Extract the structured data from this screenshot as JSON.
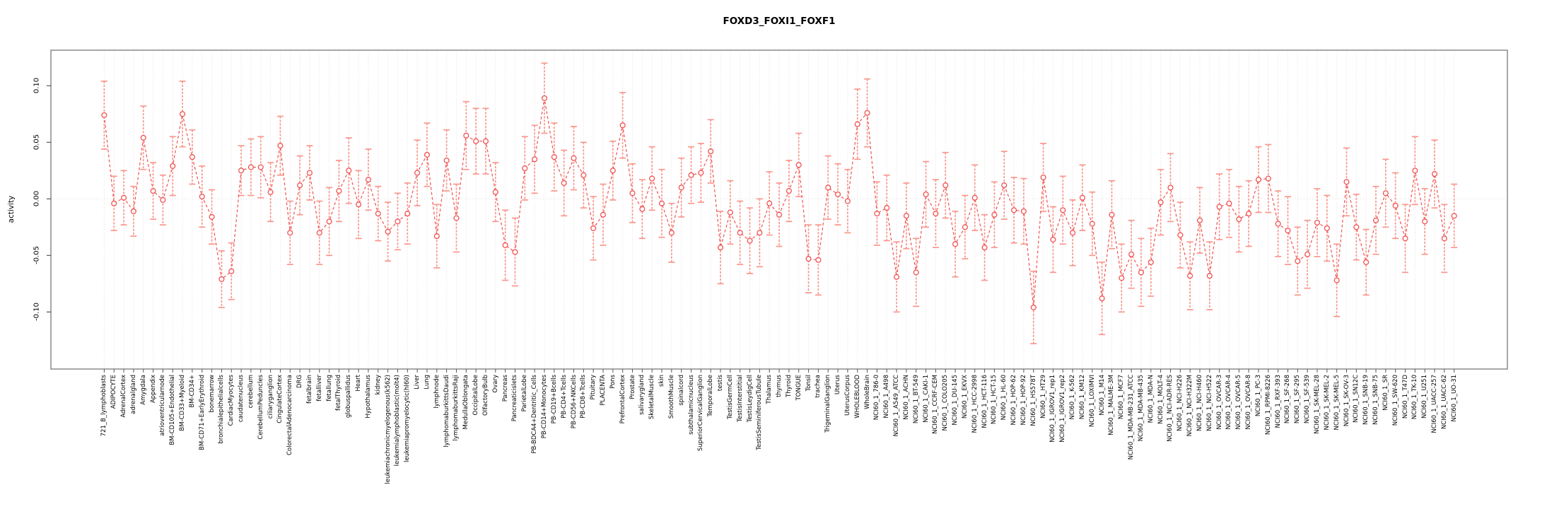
{
  "chart_data": {
    "type": "line",
    "subtype": "points-with-error-bars",
    "title": "FOXD3_FOXI1_FOXF1",
    "xlabel": "",
    "ylabel": "activity",
    "ylim": [
      -0.15,
      0.13
    ],
    "yticks": [
      0.1,
      0.05,
      0.0,
      -0.05,
      -0.1
    ],
    "ytick_labels": [
      "0.10",
      "0.05",
      "0.00",
      "-0.05",
      "-0.10"
    ],
    "grid": "vertical-dotted-per-category, dotted-zero-line",
    "legend": "none",
    "colors": {
      "series": "#f05353",
      "error_bar": "#fa978c",
      "gridline": "#e4e4e4",
      "zero_line": "#d9d9d9",
      "box": "#8a8a8a",
      "tick": "#555555",
      "background": "#ffffff"
    },
    "categories": [
      "721_B_lymphoblasts",
      "ADIPOCYTE",
      "AdrenalCortex",
      "adrenalgland",
      "Amygdala",
      "Appendix",
      "atrioventricularnode",
      "BM-CD105+Endothelial",
      "BM-CD33+Myeloid",
      "BM-CD34+",
      "BM-CD71+EarlyErythroid",
      "bonemarrow",
      "bronchialepithelialcells",
      "CardiacMyocytes",
      "caudatenucleus",
      "cerebellum",
      "CerebellumPeduncles",
      "ciliaryganglion",
      "CingulateCortex",
      "ColorectalAdenocarcinoma",
      "DRG",
      "fetalbrain",
      "fetalliver",
      "fetallung",
      "fetalThyroid",
      "globuspallidus",
      "Heart",
      "Hypothalamus",
      "kidney",
      "leukemiachronicmyelogenous(k562)",
      "leukemialymphoblastic(molt4)",
      "leukemiapromyelocytic(hl60)",
      "Liver",
      "Lung",
      "lymphnode",
      "lymphomaburkittsDaudi",
      "lymphomaburkittsRaji",
      "MedullaOblongata",
      "OccipitalLobe",
      "OlfactoryBulb",
      "Ovary",
      "Pancreas",
      "Pancreaticislets",
      "ParietalLobe",
      "PB-BDCA4+Dentritic_Cells",
      "PB-CD14+Monocytes",
      "PB-CD19+Bcells",
      "PB-CD4+Tcells",
      "PB-CD56+NKCells",
      "PB-CD8+Tcells",
      "Pituitary",
      "PLACENTA",
      "Pons",
      "PrefrontalCortex",
      "Prostate",
      "salivarygland",
      "SkeletalMuscle",
      "skin",
      "SmoothMuscle",
      "spinalcord",
      "subthalamicnucleus",
      "SuperiorCervicalGanglion",
      "TemporalLobe",
      "testis",
      "TestisGermCell",
      "TestisInterstitial",
      "TestisLeydigCell",
      "TestisSeminiferousTubule",
      "Thalamus",
      "thymus",
      "Thyroid",
      "TONGUE",
      "Tonsil",
      "trachea",
      "TrigeminalGanglion",
      "Uterus",
      "UterusCorpus",
      "WHOLEBLOOD",
      "WholeBrain",
      "NCI60_1_786-0",
      "NCI60_1_A498",
      "NCI60_1_A549_ATCC",
      "NCI60_1_ACHN",
      "NCI60_1_BT-549",
      "NCI60_1_CAKI-1",
      "NCI60_1_CCRF-CEM",
      "NCI60_1_COLO205",
      "NCI60_1_DU-145",
      "NCI60_1_EKVX",
      "NCI60_1_HCC-2998",
      "NCI60_1_HCT-116",
      "NCI60_1_HCT-15",
      "NCI60_1_HL-60",
      "NCI60_1_HOP-62",
      "NCI60_1_HOP-92",
      "NCI60_1_HS578T",
      "NCI60_1_HT29",
      "NCI60_1_IGROV1_rep1",
      "NCI60_1_IGROV1_rep2",
      "NCI60_1_K-562",
      "NCI60_1_KM12",
      "NCI60_1_LOXIMVI",
      "NCI60_1_M14",
      "NCI60_1_MALME-3M",
      "NCI60_1_MCF7",
      "NCI60_1_MDA-MB-231_ATCC",
      "NCI60_1_MDA-MB-435",
      "NCI60_1_MDA-N",
      "NCI60_1_MOLT-4",
      "NCI60_1_NCI-ADR-RES",
      "NCI60_1_NCI-H226",
      "NCI60_1_NCI-H322M",
      "NCI60_1_NCI-H460",
      "NCI60_1_NCI-H522",
      "NCI60_1_OVCAR-3",
      "NCI60_1_OVCAR-4",
      "NCI60_1_OVCAR-5",
      "NCI60_1_OVCAR-8",
      "NCI60_1_PC-3",
      "NCI60_1_RPMI-8226",
      "NCI60_1_RXF-393",
      "NCI60_1_SF-268",
      "NCI60_1_SF-295",
      "NCI60_1_SF-539",
      "NCI60_1_SK-MEL-28",
      "NCI60_1_SK-MEL-2",
      "NCI60_1_SK-MEL-5",
      "NCI60_1_SK-OV-3",
      "NCI60_1_SN12C",
      "NCI60_1_SNB-19",
      "NCI60_1_SNB-75",
      "NCI60_1_SR",
      "NCI60_1_SW-620",
      "NCI60_1_T47D",
      "NCI60_1_TK-10",
      "NCI60_1_U251",
      "NCI60_1_UACC-257",
      "NCI60_1_UACC-62",
      "NCI60_1_UO-31"
    ],
    "values": [
      0.074,
      -0.004,
      0.001,
      -0.011,
      0.054,
      0.007,
      -0.001,
      0.029,
      0.075,
      0.037,
      0.002,
      -0.016,
      -0.071,
      -0.064,
      0.025,
      0.028,
      0.028,
      0.006,
      0.047,
      -0.03,
      0.012,
      0.023,
      -0.03,
      -0.02,
      0.007,
      0.025,
      -0.005,
      0.017,
      -0.013,
      -0.029,
      -0.02,
      -0.013,
      0.023,
      0.039,
      -0.033,
      0.034,
      -0.017,
      0.056,
      0.051,
      0.051,
      0.006,
      -0.041,
      -0.047,
      0.027,
      0.035,
      0.089,
      0.037,
      0.014,
      0.036,
      0.021,
      -0.026,
      -0.014,
      0.025,
      0.065,
      0.005,
      -0.009,
      0.018,
      -0.004,
      -0.03,
      0.01,
      0.021,
      0.023,
      0.042,
      -0.043,
      -0.012,
      -0.03,
      -0.037,
      -0.03,
      -0.004,
      -0.014,
      0.007,
      0.03,
      -0.053,
      -0.054,
      0.01,
      0.004,
      -0.002,
      0.066,
      0.076,
      -0.013,
      -0.008,
      -0.069,
      -0.015,
      -0.065,
      0.004,
      -0.013,
      0.012,
      -0.04,
      -0.025,
      0.001,
      -0.043,
      -0.014,
      0.012,
      -0.01,
      -0.011,
      -0.096,
      0.019,
      -0.036,
      -0.01,
      -0.03,
      0.001,
      -0.022,
      -0.088,
      -0.014,
      -0.07,
      -0.049,
      -0.065,
      -0.056,
      -0.003,
      0.01,
      -0.032,
      -0.068,
      -0.019,
      -0.068,
      -0.007,
      -0.004,
      -0.018,
      -0.013,
      0.017,
      0.018,
      -0.022,
      -0.028,
      -0.055,
      -0.049,
      -0.021,
      -0.026,
      -0.072,
      0.015,
      -0.025,
      -0.056,
      -0.019,
      0.005,
      -0.006,
      -0.035,
      0.025,
      -0.02,
      0.022,
      -0.035,
      -0.015
    ],
    "errors": [
      0.03,
      0.024,
      0.024,
      0.022,
      0.028,
      0.025,
      0.022,
      0.026,
      0.029,
      0.024,
      0.027,
      0.024,
      0.025,
      0.025,
      0.022,
      0.025,
      0.027,
      0.026,
      0.026,
      0.028,
      0.026,
      0.024,
      0.028,
      0.03,
      0.027,
      0.029,
      0.03,
      0.027,
      0.024,
      0.026,
      0.025,
      0.027,
      0.029,
      0.028,
      0.028,
      0.027,
      0.03,
      0.03,
      0.029,
      0.029,
      0.026,
      0.031,
      0.03,
      0.028,
      0.03,
      0.031,
      0.03,
      0.029,
      0.028,
      0.029,
      0.028,
      0.027,
      0.026,
      0.029,
      0.026,
      0.026,
      0.028,
      0.03,
      0.026,
      0.026,
      0.025,
      0.026,
      0.028,
      0.032,
      0.028,
      0.028,
      0.029,
      0.03,
      0.028,
      0.028,
      0.027,
      0.028,
      0.03,
      0.031,
      0.028,
      0.027,
      0.028,
      0.031,
      0.03,
      0.028,
      0.029,
      0.031,
      0.029,
      0.03,
      0.029,
      0.03,
      0.029,
      0.029,
      0.028,
      0.029,
      0.029,
      0.029,
      0.03,
      0.029,
      0.029,
      0.032,
      0.03,
      0.029,
      0.03,
      0.029,
      0.029,
      0.028,
      0.032,
      0.03,
      0.03,
      0.03,
      0.03,
      0.03,
      0.029,
      0.03,
      0.029,
      0.03,
      0.029,
      0.03,
      0.029,
      0.03,
      0.029,
      0.029,
      0.029,
      0.03,
      0.029,
      0.03,
      0.03,
      0.03,
      0.03,
      0.029,
      0.032,
      0.03,
      0.029,
      0.029,
      0.03,
      0.03,
      0.029,
      0.03,
      0.03,
      0.029,
      0.03,
      0.03,
      0.028
    ]
  }
}
